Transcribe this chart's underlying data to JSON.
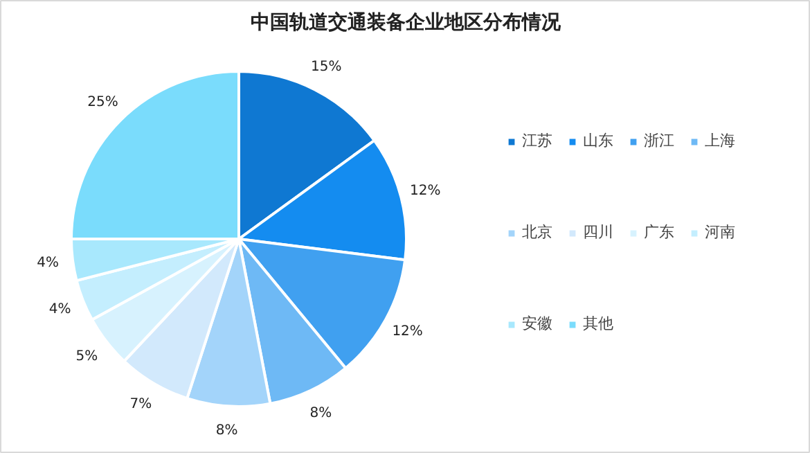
{
  "chart_data": {
    "type": "pie",
    "title": "中国轨道交通装备企业地区分布情况",
    "categories": [
      "江苏",
      "山东",
      "浙江",
      "上海",
      "北京",
      "四川",
      "广东",
      "河南",
      "安徽",
      "其他"
    ],
    "values": [
      15,
      12,
      12,
      8,
      8,
      7,
      5,
      4,
      4,
      25
    ],
    "colors": [
      "#0f78d2",
      "#148cf0",
      "#40a0f0",
      "#6eb9f5",
      "#a3d4fa",
      "#d2e9fc",
      "#d7f2fe",
      "#c4eefe",
      "#a8e8fd",
      "#7adcfc"
    ],
    "value_labels": [
      "15%",
      "12%",
      "12%",
      "8%",
      "8%",
      "7%",
      "5%",
      "4%",
      "4%",
      "25%"
    ],
    "legend": "right"
  }
}
